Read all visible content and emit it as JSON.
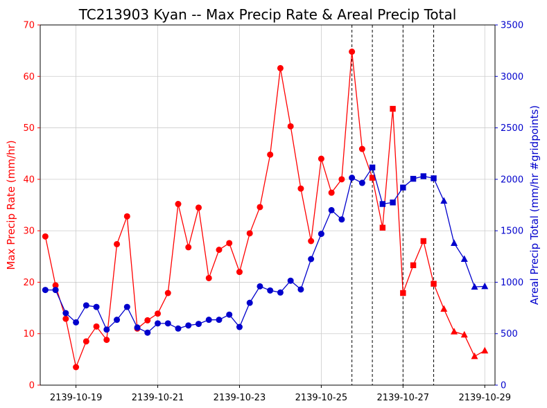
{
  "chart_data": {
    "type": "line",
    "title": "TC213903 Kyan -- Max Precip Rate & Areal Precip Total",
    "ylabel_left": "Max Precip Rate (mm/hr)",
    "ylabel_right": "Areal Precip Total (mm/hr #gridpoints)",
    "xlabel": "",
    "x_ticks": [
      "2139-10-19",
      "2139-10-21",
      "2139-10-23",
      "2139-10-25",
      "2139-10-27",
      "2139-10-29"
    ],
    "ylim_left": [
      0,
      70
    ],
    "yticks_left": [
      0,
      10,
      20,
      30,
      40,
      50,
      60,
      70
    ],
    "ylim_right": [
      0,
      3500
    ],
    "yticks_right": [
      0,
      500,
      1000,
      1500,
      2000,
      2500,
      3000,
      3500
    ],
    "grid": true,
    "colors": {
      "left": "#ff0000",
      "right": "#0000cc",
      "vlines": "#000000"
    },
    "x": [
      "2139-10-18 06:00",
      "2139-10-18 12:00",
      "2139-10-18 18:00",
      "2139-10-19 00:00",
      "2139-10-19 06:00",
      "2139-10-19 12:00",
      "2139-10-19 18:00",
      "2139-10-20 00:00",
      "2139-10-20 06:00",
      "2139-10-20 12:00",
      "2139-10-20 18:00",
      "2139-10-21 00:00",
      "2139-10-21 06:00",
      "2139-10-21 12:00",
      "2139-10-21 18:00",
      "2139-10-22 00:00",
      "2139-10-22 06:00",
      "2139-10-22 12:00",
      "2139-10-22 18:00",
      "2139-10-23 00:00",
      "2139-10-23 06:00",
      "2139-10-23 12:00",
      "2139-10-23 18:00",
      "2139-10-24 00:00",
      "2139-10-24 06:00",
      "2139-10-24 12:00",
      "2139-10-24 18:00",
      "2139-10-25 00:00",
      "2139-10-25 06:00",
      "2139-10-25 12:00",
      "2139-10-25 18:00",
      "2139-10-26 00:00",
      "2139-10-26 06:00",
      "2139-10-26 12:00",
      "2139-10-26 18:00",
      "2139-10-27 00:00",
      "2139-10-27 06:00",
      "2139-10-27 12:00",
      "2139-10-27 18:00",
      "2139-10-28 00:00",
      "2139-10-28 06:00",
      "2139-10-28 12:00",
      "2139-10-28 18:00",
      "2139-10-29 00:00"
    ],
    "markers": [
      "circle",
      "circle",
      "circle",
      "circle",
      "circle",
      "circle",
      "circle",
      "circle",
      "circle",
      "circle",
      "circle",
      "circle",
      "circle",
      "circle",
      "circle",
      "circle",
      "circle",
      "circle",
      "circle",
      "circle",
      "circle",
      "circle",
      "circle",
      "circle",
      "circle",
      "circle",
      "circle",
      "circle",
      "circle",
      "circle",
      "circle",
      "circle",
      "square",
      "square",
      "square",
      "square",
      "square",
      "square",
      "square",
      "triangle",
      "triangle",
      "triangle",
      "triangle",
      "triangle"
    ],
    "series": [
      {
        "name": "Max Precip Rate",
        "axis": "left",
        "values": [
          28.9,
          19.4,
          12.9,
          3.5,
          8.5,
          11.4,
          8.8,
          27.4,
          32.8,
          11.0,
          12.6,
          13.9,
          17.9,
          35.2,
          26.8,
          34.5,
          20.8,
          26.3,
          27.6,
          22.0,
          29.5,
          34.6,
          44.8,
          61.6,
          50.3,
          38.2,
          28.0,
          44.0,
          37.4,
          40.0,
          64.8,
          45.9,
          40.3,
          30.6,
          53.7,
          17.9,
          23.3,
          28.0,
          19.7,
          14.8,
          10.4,
          9.8,
          5.6,
          6.7
        ]
      },
      {
        "name": "Areal Precip Total",
        "axis": "right",
        "values": [
          925,
          925,
          700,
          610,
          775,
          760,
          540,
          635,
          760,
          560,
          510,
          600,
          600,
          550,
          580,
          595,
          635,
          635,
          685,
          565,
          800,
          960,
          920,
          900,
          1015,
          930,
          1225,
          1470,
          1700,
          1610,
          2015,
          1965,
          2115,
          1760,
          1775,
          1920,
          2005,
          2030,
          2010,
          1790,
          1380,
          1225,
          955,
          960
        ]
      }
    ],
    "vlines": [
      "2139-10-25 18:00",
      "2139-10-26 06:00",
      "2139-10-27 00:00",
      "2139-10-27 18:00"
    ]
  }
}
